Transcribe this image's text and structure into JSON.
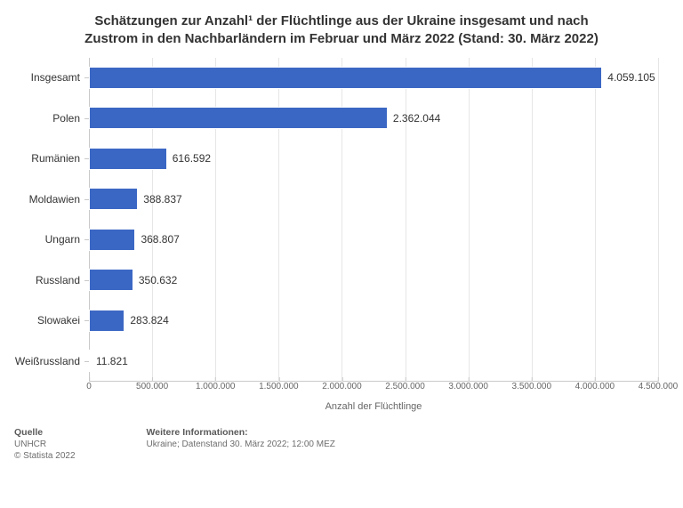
{
  "title_line1": "Schätzungen zur Anzahl¹ der Flüchtlinge aus der Ukraine insgesamt und nach",
  "title_line2": "Zustrom in den Nachbarländern im Februar und März 2022 (Stand: 30. März 2022)",
  "chart": {
    "type": "bar-horizontal",
    "x_axis_title": "Anzahl der Flüchtlinge",
    "x_min": 0,
    "x_max": 4500000,
    "x_tick_step": 500000,
    "x_tick_labels": [
      "0",
      "500.000",
      "1.000.000",
      "1.500.000",
      "2.000.000",
      "2.500.000",
      "3.000.000",
      "3.500.000",
      "4.000.000",
      "4.500.000"
    ],
    "bar_color": "#3b67c4",
    "grid_color": "#e6e6e6",
    "axis_color": "#c9c9c9",
    "background_color": "#ffffff",
    "label_color": "#333333",
    "tick_label_color": "#666666",
    "categories": [
      "Insgesamt",
      "Polen",
      "Rumänien",
      "Moldawien",
      "Ungarn",
      "Russland",
      "Slowakei",
      "Weißrussland"
    ],
    "values": [
      4059105,
      2362044,
      616592,
      388837,
      368807,
      350632,
      283824,
      11821
    ],
    "value_labels": [
      "4.059.105",
      "2.362.044",
      "616.592",
      "388.837",
      "368.807",
      "350.632",
      "283.824",
      "11.821"
    ],
    "title_fontsize": 15,
    "cat_label_fontsize": 12,
    "value_label_fontsize": 12,
    "tick_label_fontsize": 10,
    "bar_height_ratio": 0.56
  },
  "footer": {
    "source_heading": "Quelle",
    "source_line1": "UNHCR",
    "source_line2": "© Statista 2022",
    "info_heading": "Weitere Informationen:",
    "info_line1": "Ukraine; Datenstand 30. März 2022; 12:00 MEZ"
  }
}
